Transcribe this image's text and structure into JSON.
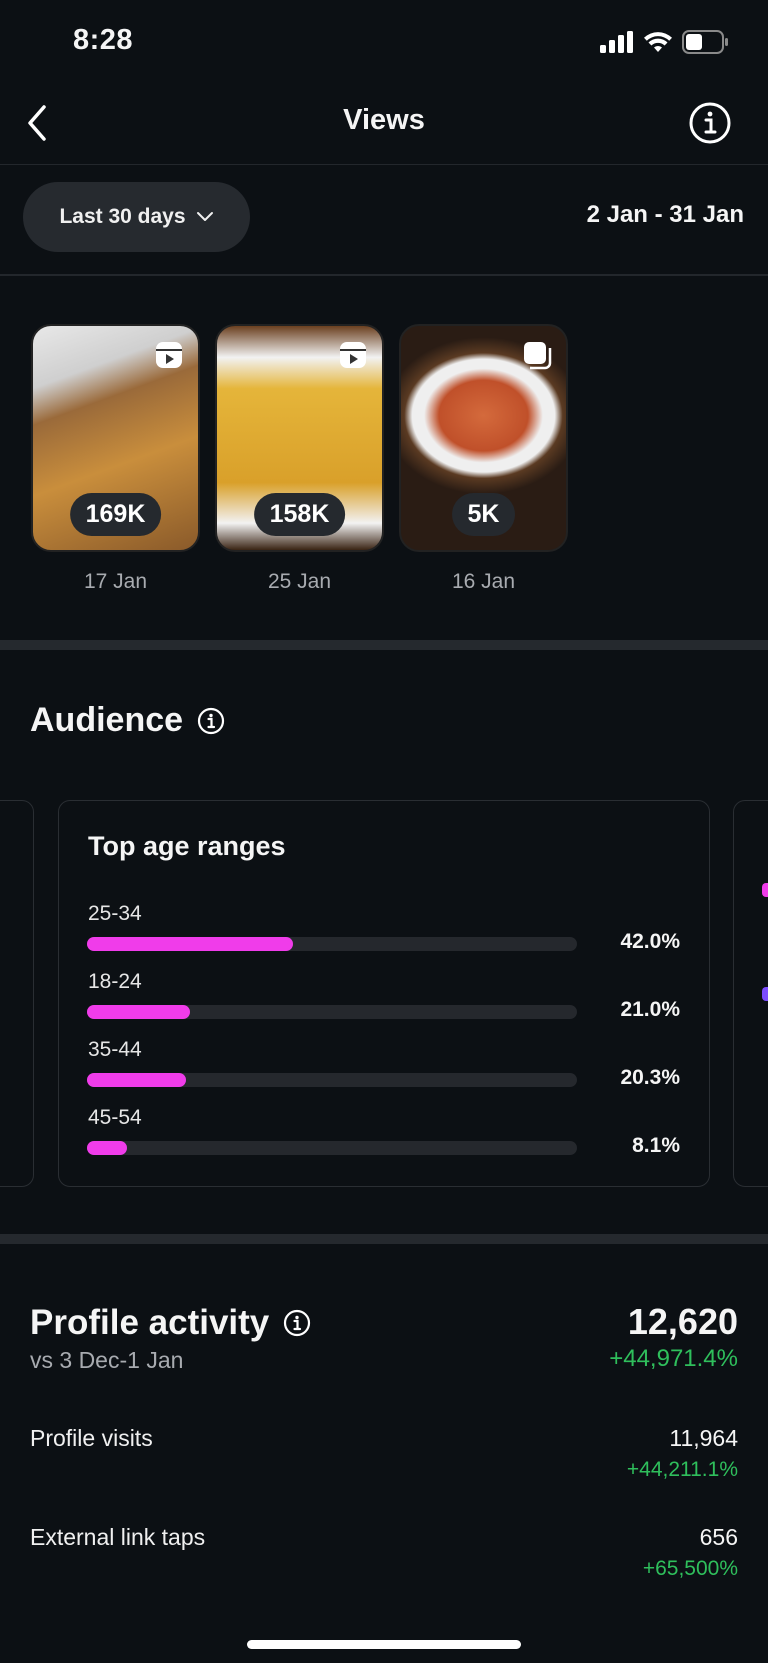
{
  "status_bar": {
    "time": "8:28",
    "icons": [
      "signal-icon",
      "wifi-icon",
      "battery-icon"
    ]
  },
  "header": {
    "title": "Views",
    "back_icon": "chevron-left-icon",
    "info_icon": "info-icon"
  },
  "filter": {
    "selected": "Last 30 days",
    "dropdown_icon": "chevron-down-icon",
    "date_range": "2 Jan - 31 Jan"
  },
  "top_content": [
    {
      "views": "169K",
      "date": "17 Jan",
      "type_icon": "reel-icon",
      "colors": [
        "#8a5a2a",
        "#d69a3a",
        "#e8e8e8"
      ]
    },
    {
      "views": "158K",
      "date": "25 Jan",
      "type_icon": "reel-icon",
      "colors": [
        "#6b4020",
        "#e5b53a",
        "#f2f2f2"
      ]
    },
    {
      "views": "5K",
      "date": "16 Jan",
      "type_icon": "carousel-icon",
      "colors": [
        "#5a3a22",
        "#d46a3c",
        "#efefef"
      ]
    }
  ],
  "audience": {
    "title": "Audience",
    "card_title": "Top age ranges",
    "bar_color": "#f03cea",
    "age_ranges": [
      {
        "label": "25-34",
        "percent": 42.0,
        "display": "42.0%"
      },
      {
        "label": "18-24",
        "percent": 21.0,
        "display": "21.0%"
      },
      {
        "label": "35-44",
        "percent": 20.3,
        "display": "20.3%"
      },
      {
        "label": "45-54",
        "percent": 8.1,
        "display": "8.1%"
      }
    ]
  },
  "profile_activity": {
    "title": "Profile activity",
    "comparison": "vs 3 Dec-1 Jan",
    "total": "12,620",
    "total_change": "+44,971.4%",
    "rows": [
      {
        "label": "Profile visits",
        "value": "11,964",
        "change": "+44,211.1%"
      },
      {
        "label": "External link taps",
        "value": "656",
        "change": "+65,500%"
      }
    ]
  }
}
